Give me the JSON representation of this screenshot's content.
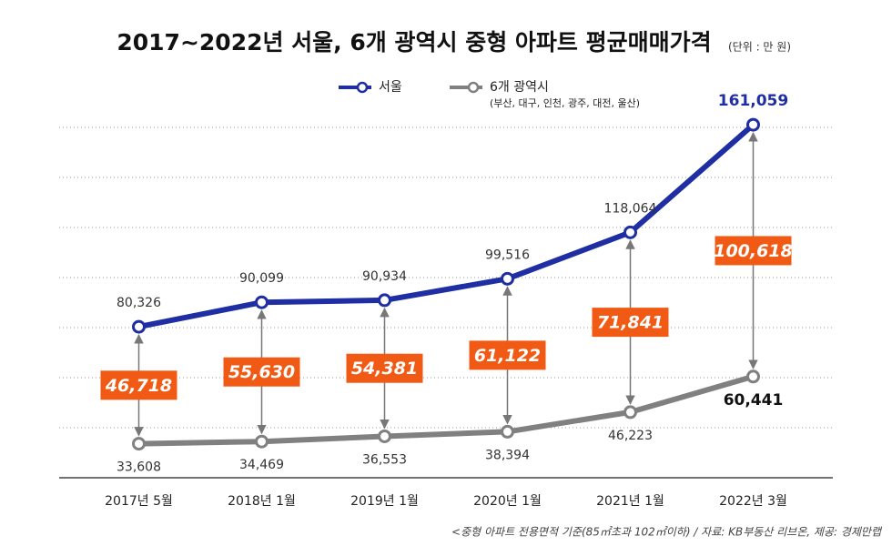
{
  "chart_data": {
    "type": "line",
    "title": "2017~2022년 서울, 6개 광역시 중형 아파트 평균매매가격",
    "unit": "(단위 : 만 원)",
    "source": "<중형 아파트 전용면적 기준(85㎡초과 102㎡이하) / 자료: KB부동산 리브온, 제공: 경제만랩",
    "categories": [
      "2017년 5월",
      "2018년 1월",
      "2019년 1월",
      "2020년 1월",
      "2021년 1월",
      "2022년 3월"
    ],
    "series": [
      {
        "name": "서울",
        "color": "#1f2ea3",
        "values": [
          80326,
          90099,
          90934,
          99516,
          118064,
          161059
        ],
        "value_labels": [
          "80,326",
          "90,099",
          "90,934",
          "99,516",
          "118,064",
          "161,059"
        ]
      },
      {
        "name": "6개 광역시",
        "legend_note": "(부산, 대구, 인천, 광주, 대전, 울산)",
        "color": "#808080",
        "values": [
          33608,
          34469,
          36553,
          38394,
          46223,
          60441
        ],
        "value_labels": [
          "33,608",
          "34,469",
          "36,553",
          "38,394",
          "46,223",
          "60,441"
        ]
      }
    ],
    "gap": {
      "color": "#f05a14",
      "values": [
        46718,
        55630,
        54381,
        61122,
        71841,
        100618
      ],
      "value_labels": [
        "46,718",
        "55,630",
        "54,381",
        "61,122",
        "71,841",
        "100,618"
      ]
    },
    "ylim": [
      20000,
      170000
    ],
    "yticks": [
      40000,
      60000,
      80000,
      100000,
      120000,
      140000,
      160000
    ],
    "grid": true
  }
}
